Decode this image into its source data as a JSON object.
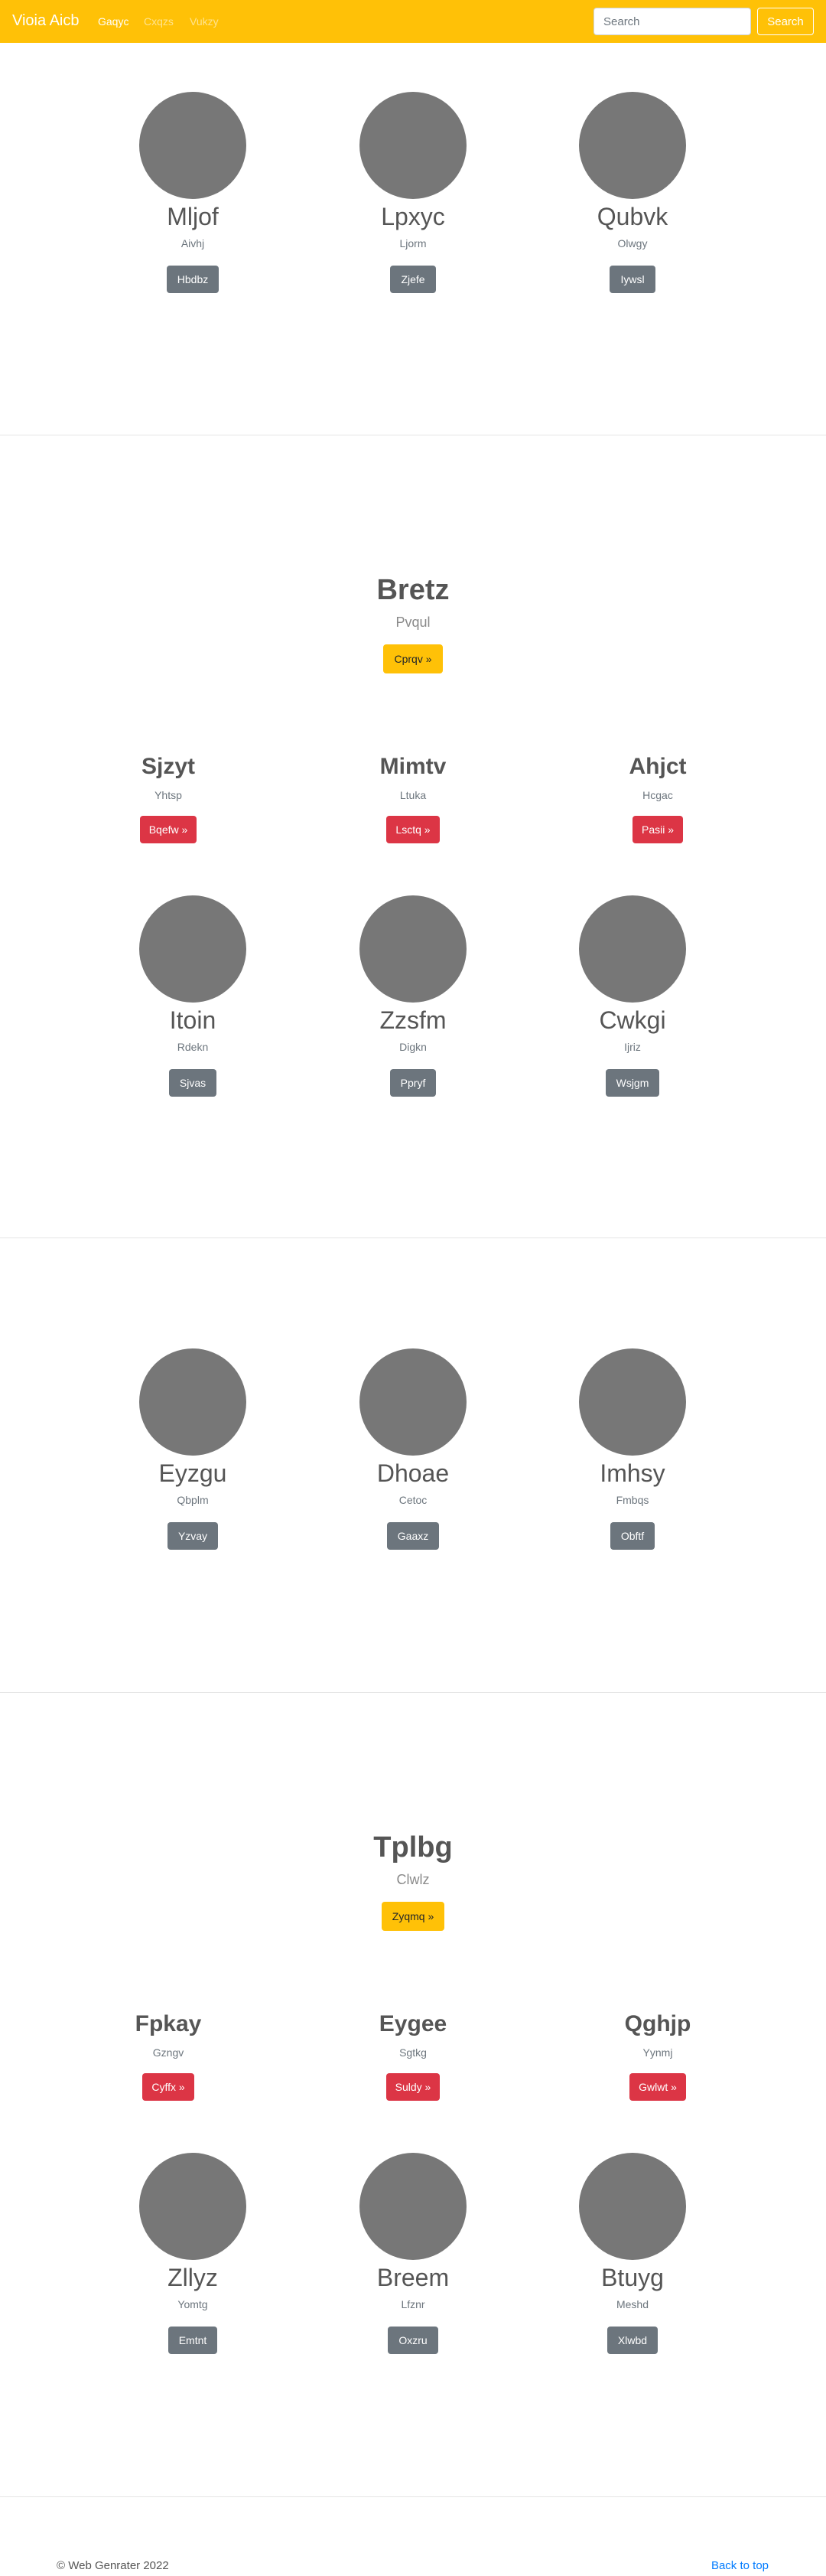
{
  "navbar": {
    "brand": "Vioia Aicb",
    "links": [
      {
        "label": "Gaqyc",
        "active": true
      },
      {
        "label": "Cxqzs",
        "active": false
      },
      {
        "label": "Vukzy",
        "active": false
      }
    ],
    "search_placeholder": "Search",
    "search_button": "Search"
  },
  "sections": [
    {
      "people": [
        {
          "name": "Mljof",
          "sub": "Aivhj",
          "button": "Hbdbz"
        },
        {
          "name": "Lpxyc",
          "sub": "Ljorm",
          "button": "Zjefe"
        },
        {
          "name": "Qubvk",
          "sub": "Olwgy",
          "button": "Iywsl"
        }
      ]
    },
    {
      "hero": {
        "title": "Bretz",
        "subtitle": "Pvqul",
        "button": "Cprqv »"
      },
      "features": [
        {
          "title": "Sjzyt",
          "sub": "Yhtsp",
          "button": "Bqefw »"
        },
        {
          "title": "Mimtv",
          "sub": "Ltuka",
          "button": "Lsctq »"
        },
        {
          "title": "Ahjct",
          "sub": "Hcgac",
          "button": "Pasii »"
        }
      ],
      "people": [
        {
          "name": "Itoin",
          "sub": "Rdekn",
          "button": "Sjvas"
        },
        {
          "name": "Zzsfm",
          "sub": "Digkn",
          "button": "Ppryf"
        },
        {
          "name": "Cwkgi",
          "sub": "Ijriz",
          "button": "Wsjgm"
        }
      ]
    },
    {
      "people": [
        {
          "name": "Eyzgu",
          "sub": "Qbplm",
          "button": "Yzvay"
        },
        {
          "name": "Dhoae",
          "sub": "Cetoc",
          "button": "Gaaxz"
        },
        {
          "name": "Imhsy",
          "sub": "Fmbqs",
          "button": "Obftf"
        }
      ]
    },
    {
      "hero": {
        "title": "Tplbg",
        "subtitle": "Clwlz",
        "button": "Zyqmq »"
      },
      "features": [
        {
          "title": "Fpkay",
          "sub": "Gzngv",
          "button": "Cyffx »"
        },
        {
          "title": "Eygee",
          "sub": "Sgtkg",
          "button": "Suldy »"
        },
        {
          "title": "Qghjp",
          "sub": "Yynmj",
          "button": "Gwlwt »"
        }
      ],
      "people": [
        {
          "name": "Zllyz",
          "sub": "Yomtg",
          "button": "Emtnt"
        },
        {
          "name": "Breem",
          "sub": "Lfznr",
          "button": "Oxzru"
        },
        {
          "name": "Btuyg",
          "sub": "Meshd",
          "button": "Xlwbd"
        }
      ]
    }
  ],
  "footer": {
    "copyright": "© Web Genrater 2022",
    "back_to_top": "Back to top"
  },
  "colors": {
    "navbar": "#ffc107",
    "avatar": "#777777",
    "gray_button": "#6c757d",
    "red_button": "#dc3545",
    "link": "#007bff"
  }
}
